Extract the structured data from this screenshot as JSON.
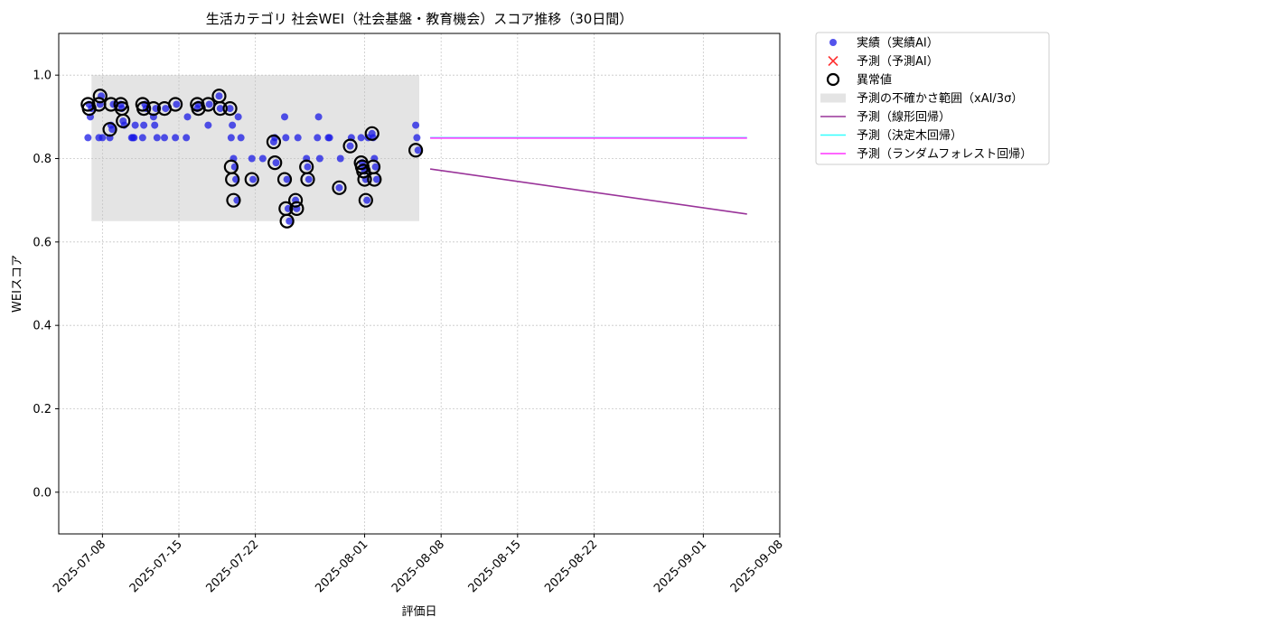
{
  "chart_data": {
    "type": "scatter",
    "title": "生活カテゴリ 社会WEI（社会基盤・教育機会）スコア推移（30日間）",
    "xlabel": "評価日",
    "ylabel": "WEIスコア",
    "xlim": [
      "2025-07-04",
      "2025-09-08"
    ],
    "ylim": [
      -0.1,
      1.1
    ],
    "x_ticks": [
      "2025-07-08",
      "2025-07-15",
      "2025-07-22",
      "2025-08-01",
      "2025-08-08",
      "2025-08-15",
      "2025-08-22",
      "2025-09-01",
      "2025-09-08"
    ],
    "y_ticks": [
      0.0,
      0.2,
      0.4,
      0.6,
      0.8,
      1.0
    ],
    "y_tick_labels": [
      "0.0",
      "0.2",
      "0.4",
      "0.6",
      "0.8",
      "1.0"
    ],
    "grid": true,
    "legend_position": "outside-right",
    "colors": {
      "actual": "#1a1ae6",
      "predicted": "#ff3333",
      "anomaly": "#000000",
      "band": "#bfbfbf",
      "linear": "#993399",
      "tree": "#33ffff",
      "forest": "#ff33ff"
    },
    "uncertainty_band": {
      "name": "予測の不確かさ範囲（xAI/3σ）",
      "x": [
        "2025-07-07",
        "2025-08-06"
      ],
      "y": [
        0.65,
        1.0
      ]
    },
    "series": [
      {
        "name": "実績（実績AI）",
        "type": "scatter",
        "points": [
          [
            "2025-07-07",
            0.85
          ],
          [
            "2025-07-07",
            0.93
          ],
          [
            "2025-07-07",
            0.9
          ],
          [
            "2025-07-07",
            0.92
          ],
          [
            "2025-07-08",
            0.85
          ],
          [
            "2025-07-08",
            0.93
          ],
          [
            "2025-07-08",
            0.95
          ],
          [
            "2025-07-08",
            0.85
          ],
          [
            "2025-07-09",
            0.85
          ],
          [
            "2025-07-09",
            0.88
          ],
          [
            "2025-07-09",
            0.87
          ],
          [
            "2025-07-09",
            0.93
          ],
          [
            "2025-07-10",
            0.93
          ],
          [
            "2025-07-10",
            0.92
          ],
          [
            "2025-07-10",
            0.89
          ],
          [
            "2025-07-10",
            0.88
          ],
          [
            "2025-07-11",
            0.85
          ],
          [
            "2025-07-11",
            0.85
          ],
          [
            "2025-07-11",
            0.85
          ],
          [
            "2025-07-11",
            0.88
          ],
          [
            "2025-07-12",
            0.85
          ],
          [
            "2025-07-12",
            0.88
          ],
          [
            "2025-07-12",
            0.93
          ],
          [
            "2025-07-12",
            0.92
          ],
          [
            "2025-07-13",
            0.9
          ],
          [
            "2025-07-13",
            0.88
          ],
          [
            "2025-07-13",
            0.92
          ],
          [
            "2025-07-13",
            0.85
          ],
          [
            "2025-07-14",
            0.85
          ],
          [
            "2025-07-14",
            0.92
          ],
          [
            "2025-07-15",
            0.85
          ],
          [
            "2025-07-15",
            0.93
          ],
          [
            "2025-07-16",
            0.85
          ],
          [
            "2025-07-16",
            0.9
          ],
          [
            "2025-07-17",
            0.92
          ],
          [
            "2025-07-17",
            0.93
          ],
          [
            "2025-07-18",
            0.88
          ],
          [
            "2025-07-18",
            0.93
          ],
          [
            "2025-07-19",
            0.95
          ],
          [
            "2025-07-19",
            0.92
          ],
          [
            "2025-07-20",
            0.92
          ],
          [
            "2025-07-20",
            0.85
          ],
          [
            "2025-07-20",
            0.88
          ],
          [
            "2025-07-20",
            0.8
          ],
          [
            "2025-07-20",
            0.78
          ],
          [
            "2025-07-20",
            0.75
          ],
          [
            "2025-07-20",
            0.7
          ],
          [
            "2025-07-20",
            0.9
          ],
          [
            "2025-07-21",
            0.85
          ],
          [
            "2025-07-22",
            0.8
          ],
          [
            "2025-07-22",
            0.75
          ],
          [
            "2025-07-23",
            0.8
          ],
          [
            "2025-07-24",
            0.84
          ],
          [
            "2025-07-24",
            0.85
          ],
          [
            "2025-07-24",
            0.79
          ],
          [
            "2025-07-25",
            0.9
          ],
          [
            "2025-07-25",
            0.85
          ],
          [
            "2025-07-25",
            0.75
          ],
          [
            "2025-07-25",
            0.68
          ],
          [
            "2025-07-25",
            0.65
          ],
          [
            "2025-07-26",
            0.7
          ],
          [
            "2025-07-26",
            0.68
          ],
          [
            "2025-07-26",
            0.85
          ],
          [
            "2025-07-27",
            0.8
          ],
          [
            "2025-07-27",
            0.78
          ],
          [
            "2025-07-27",
            0.75
          ],
          [
            "2025-07-28",
            0.85
          ],
          [
            "2025-07-28",
            0.9
          ],
          [
            "2025-07-28",
            0.8
          ],
          [
            "2025-07-29",
            0.85
          ],
          [
            "2025-07-29",
            0.85
          ],
          [
            "2025-07-30",
            0.73
          ],
          [
            "2025-07-30",
            0.8
          ],
          [
            "2025-07-31",
            0.83
          ],
          [
            "2025-07-31",
            0.85
          ],
          [
            "2025-08-01",
            0.85
          ],
          [
            "2025-08-01",
            0.79
          ],
          [
            "2025-08-01",
            0.78
          ],
          [
            "2025-08-01",
            0.77
          ],
          [
            "2025-08-01",
            0.75
          ],
          [
            "2025-08-01",
            0.7
          ],
          [
            "2025-08-01",
            0.85
          ],
          [
            "2025-08-02",
            0.86
          ],
          [
            "2025-08-02",
            0.85
          ],
          [
            "2025-08-02",
            0.8
          ],
          [
            "2025-08-02",
            0.78
          ],
          [
            "2025-08-02",
            0.75
          ],
          [
            "2025-08-06",
            0.88
          ],
          [
            "2025-08-06",
            0.85
          ],
          [
            "2025-08-06",
            0.82
          ]
        ]
      },
      {
        "name": "異常値",
        "type": "anomaly",
        "points": [
          [
            "2025-07-07",
            0.93
          ],
          [
            "2025-07-07",
            0.92
          ],
          [
            "2025-07-08",
            0.93
          ],
          [
            "2025-07-08",
            0.95
          ],
          [
            "2025-07-09",
            0.87
          ],
          [
            "2025-07-09",
            0.93
          ],
          [
            "2025-07-10",
            0.93
          ],
          [
            "2025-07-10",
            0.92
          ],
          [
            "2025-07-10",
            0.89
          ],
          [
            "2025-07-12",
            0.93
          ],
          [
            "2025-07-12",
            0.92
          ],
          [
            "2025-07-13",
            0.92
          ],
          [
            "2025-07-14",
            0.92
          ],
          [
            "2025-07-15",
            0.93
          ],
          [
            "2025-07-17",
            0.93
          ],
          [
            "2025-07-17",
            0.92
          ],
          [
            "2025-07-18",
            0.93
          ],
          [
            "2025-07-19",
            0.95
          ],
          [
            "2025-07-19",
            0.92
          ],
          [
            "2025-07-20",
            0.92
          ],
          [
            "2025-07-20",
            0.78
          ],
          [
            "2025-07-20",
            0.75
          ],
          [
            "2025-07-20",
            0.7
          ],
          [
            "2025-07-22",
            0.75
          ],
          [
            "2025-07-24",
            0.84
          ],
          [
            "2025-07-24",
            0.79
          ],
          [
            "2025-07-25",
            0.75
          ],
          [
            "2025-07-25",
            0.68
          ],
          [
            "2025-07-25",
            0.65
          ],
          [
            "2025-07-26",
            0.7
          ],
          [
            "2025-07-26",
            0.68
          ],
          [
            "2025-07-27",
            0.78
          ],
          [
            "2025-07-27",
            0.75
          ],
          [
            "2025-07-30",
            0.73
          ],
          [
            "2025-07-31",
            0.83
          ],
          [
            "2025-08-01",
            0.79
          ],
          [
            "2025-08-01",
            0.78
          ],
          [
            "2025-08-01",
            0.77
          ],
          [
            "2025-08-01",
            0.75
          ],
          [
            "2025-08-01",
            0.7
          ],
          [
            "2025-08-02",
            0.86
          ],
          [
            "2025-08-02",
            0.78
          ],
          [
            "2025-08-02",
            0.75
          ],
          [
            "2025-08-06",
            0.82
          ]
        ]
      },
      {
        "name": "予測（予測AI）",
        "type": "predicted",
        "points": []
      },
      {
        "name": "予測（線形回帰）",
        "type": "line",
        "x": [
          "2025-08-07",
          "2025-09-05"
        ],
        "y": [
          0.775,
          0.667
        ]
      },
      {
        "name": "予測（決定木回帰）",
        "type": "line",
        "x": [
          "2025-08-07",
          "2025-09-05"
        ],
        "y": [
          0.85,
          0.85
        ]
      },
      {
        "name": "予測（ランダムフォレスト回帰）",
        "type": "line",
        "x": [
          "2025-08-07",
          "2025-09-05"
        ],
        "y": [
          0.849,
          0.849
        ]
      }
    ],
    "legend": [
      "実績（実績AI）",
      "予測（予測AI）",
      "異常値",
      "予測の不確かさ範囲（xAI/3σ）",
      "予測（線形回帰）",
      "予測（決定木回帰）",
      "予測（ランダムフォレスト回帰）"
    ]
  }
}
